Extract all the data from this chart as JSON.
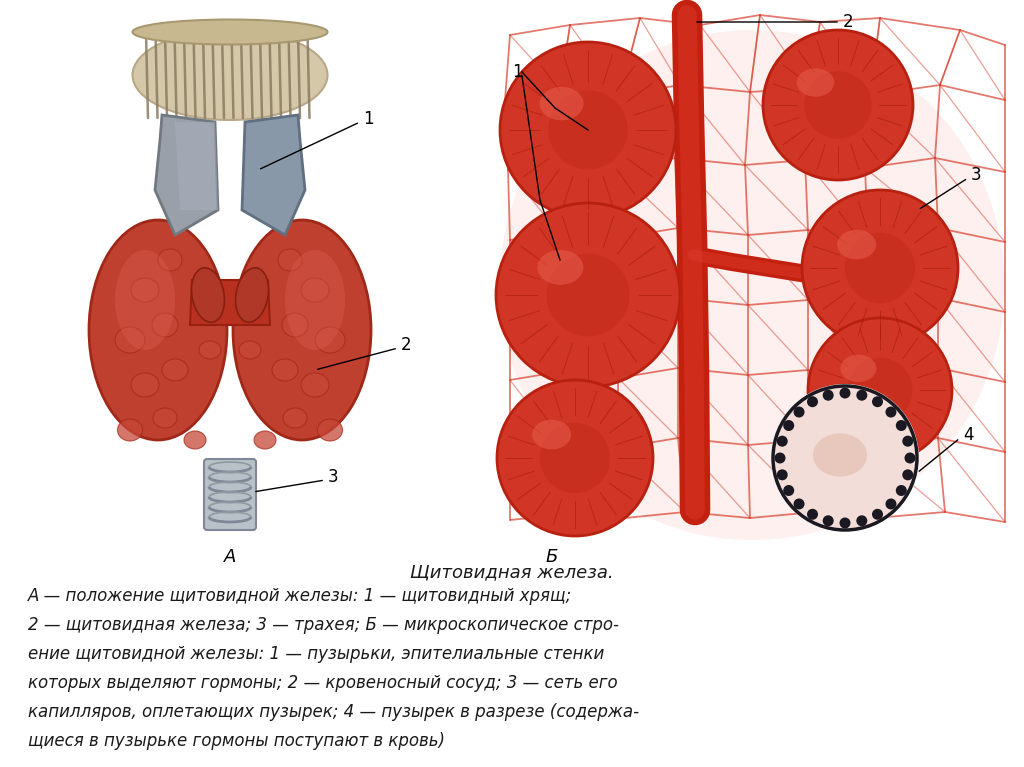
{
  "title": "Щитовидная железа.",
  "caption_lines": [
    "А — положение щитовидной железы: 1 — щитовидный хрящ;",
    "2 — щитовидная железа; 3 — трахея; Б — микроскопическое стро-",
    "ение щитовидной железы: 1 — пузырьки, эпителиальные стенки",
    "которых выделяют гормоны; 2 — кровеносный сосуд; 3 — сеть его",
    "капилляров, оплетающих пузырек; 4 — пузырек в разрезе (содержа-",
    "щиеся в пузырьке гормоны поступают в кровь)"
  ],
  "label_A": "А",
  "label_B": "Б",
  "text_color": "#1a1a1a"
}
